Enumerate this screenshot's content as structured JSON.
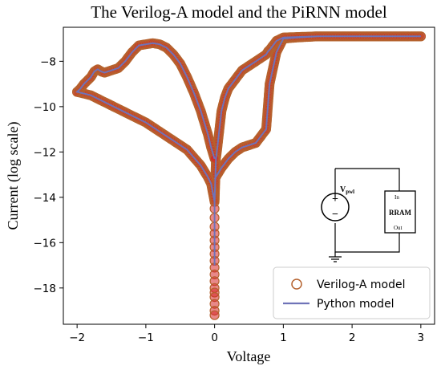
{
  "chart_data": {
    "type": "line",
    "title": "The Verilog-A model and the PiRNN model",
    "xlabel": "Voltage",
    "ylabel": "Current (log scale)",
    "xlim": [
      -2.2,
      3.2
    ],
    "ylim": [
      -19.6,
      -6.5
    ],
    "xticks": [
      -2,
      -1,
      0,
      1,
      2,
      3
    ],
    "yticks": [
      -18,
      -16,
      -14,
      -12,
      -10,
      -8
    ],
    "grid": false,
    "legend_position": "bottom-right",
    "colors": {
      "verilog": "#b5622e",
      "verilog_fill": "#d62728",
      "python": "#6f73b8"
    },
    "series": [
      {
        "name": "Verilog-A model",
        "style": "circle-markers",
        "x": [
          0,
          0.1,
          0.2,
          0.3,
          0.4,
          0.5,
          0.6,
          0.7,
          0.75,
          0.8,
          0.9,
          1.0,
          1.2,
          1.5,
          2.0,
          2.5,
          3.0,
          3.0,
          2.5,
          2.0,
          1.5,
          1.0,
          0.9,
          0.85,
          0.8,
          0.78,
          0.75,
          0.7,
          0.6,
          0.5,
          0.4,
          0.3,
          0.2,
          0.15,
          0.1,
          0.07,
          0.04,
          0.02,
          0,
          -0.05,
          -0.1,
          -0.2,
          -0.4,
          -0.6,
          -0.8,
          -1.0,
          -1.2,
          -1.4,
          -1.6,
          -1.8,
          -2.0,
          -2.0,
          -1.95,
          -1.9,
          -1.85,
          -1.8,
          -1.75,
          -1.7,
          -1.65,
          -1.6,
          -1.5,
          -1.4,
          -1.3,
          -1.2,
          -1.1,
          -1.0,
          -0.9,
          -0.8,
          -0.7,
          -0.6,
          -0.5,
          -0.4,
          -0.3,
          -0.2,
          -0.1,
          -0.05,
          0
        ],
        "y": [
          -13.2,
          -12.7,
          -12.3,
          -12.0,
          -11.8,
          -11.7,
          -11.6,
          -11.2,
          -11.0,
          -9.0,
          -7.6,
          -7.0,
          -6.95,
          -6.9,
          -6.9,
          -6.9,
          -6.9,
          -6.9,
          -6.9,
          -6.9,
          -6.9,
          -6.95,
          -7.1,
          -7.3,
          -7.5,
          -7.55,
          -7.7,
          -7.8,
          -8.0,
          -8.2,
          -8.4,
          -8.8,
          -9.2,
          -9.6,
          -10.2,
          -11.0,
          -11.8,
          -12.3,
          -14.2,
          -13.4,
          -13.1,
          -12.6,
          -11.9,
          -11.5,
          -11.1,
          -10.7,
          -10.4,
          -10.1,
          -9.8,
          -9.5,
          -9.35,
          -9.35,
          -9.2,
          -9.0,
          -8.85,
          -8.7,
          -8.45,
          -8.35,
          -8.45,
          -8.5,
          -8.4,
          -8.3,
          -8.0,
          -7.6,
          -7.3,
          -7.25,
          -7.2,
          -7.25,
          -7.4,
          -7.7,
          -8.1,
          -8.7,
          -9.4,
          -10.2,
          -11.2,
          -11.8,
          -12.3
        ]
      },
      {
        "name": "Python model",
        "style": "line",
        "x": [
          0,
          0.1,
          0.2,
          0.3,
          0.4,
          0.5,
          0.6,
          0.7,
          0.75,
          0.8,
          0.9,
          1.0,
          1.2,
          1.5,
          2.0,
          2.5,
          3.0,
          3.0,
          2.5,
          2.0,
          1.5,
          1.0,
          0.9,
          0.85,
          0.8,
          0.78,
          0.75,
          0.7,
          0.6,
          0.5,
          0.4,
          0.3,
          0.2,
          0.15,
          0.1,
          0.07,
          0.04,
          0.02,
          0,
          -0.05,
          -0.1,
          -0.2,
          -0.4,
          -0.6,
          -0.8,
          -1.0,
          -1.2,
          -1.4,
          -1.6,
          -1.8,
          -2.0,
          -2.0,
          -1.95,
          -1.9,
          -1.85,
          -1.8,
          -1.75,
          -1.7,
          -1.65,
          -1.6,
          -1.5,
          -1.4,
          -1.3,
          -1.2,
          -1.1,
          -1.0,
          -0.9,
          -0.8,
          -0.7,
          -0.6,
          -0.5,
          -0.4,
          -0.3,
          -0.2,
          -0.1,
          -0.05,
          0
        ],
        "y": [
          -13.2,
          -12.7,
          -12.3,
          -12.0,
          -11.8,
          -11.7,
          -11.6,
          -11.2,
          -11.0,
          -9.0,
          -7.6,
          -7.0,
          -6.95,
          -6.9,
          -6.9,
          -6.9,
          -6.9,
          -6.9,
          -6.9,
          -6.9,
          -6.9,
          -6.95,
          -7.1,
          -7.3,
          -7.5,
          -7.55,
          -7.7,
          -7.8,
          -8.0,
          -8.2,
          -8.4,
          -8.8,
          -9.2,
          -9.6,
          -10.2,
          -11.0,
          -11.8,
          -12.3,
          -14.2,
          -13.4,
          -13.1,
          -12.6,
          -11.9,
          -11.5,
          -11.1,
          -10.7,
          -10.4,
          -10.1,
          -9.8,
          -9.5,
          -9.35,
          -9.35,
          -9.2,
          -9.0,
          -8.85,
          -8.7,
          -8.45,
          -8.35,
          -8.45,
          -8.5,
          -8.4,
          -8.3,
          -8.0,
          -7.6,
          -7.3,
          -7.25,
          -7.2,
          -7.25,
          -7.4,
          -7.7,
          -8.1,
          -8.7,
          -9.4,
          -10.2,
          -11.2,
          -11.8,
          -12.3
        ]
      },
      {
        "name": "",
        "style": "circle-markers",
        "x": [
          0.0,
          0.0,
          0.0,
          0.0,
          0.0,
          0.0,
          0.0,
          0.0,
          0.0,
          0.0,
          0.0,
          0.0,
          0.0,
          0.0,
          0.0,
          0.0,
          0.0
        ],
        "y": [
          -14.5,
          -14.9,
          -15.3,
          -15.6,
          -15.9,
          -16.2,
          -16.5,
          -16.8,
          -17.1,
          -17.4,
          -17.7,
          -18.0,
          -18.2,
          -18.4,
          -18.7,
          -19.0,
          -19.2
        ]
      },
      {
        "name": "",
        "style": "line",
        "x": [
          0.0,
          0.0
        ],
        "y": [
          -13.8,
          -17.0
        ]
      }
    ],
    "legend": [
      "Verilog-A model",
      "Python model"
    ],
    "inset": {
      "source_label": "V",
      "source_subscript": "pwl",
      "plus": "+",
      "minus": "−",
      "device_label": "RRAM",
      "in_label": "In",
      "out_label": "Out"
    }
  }
}
